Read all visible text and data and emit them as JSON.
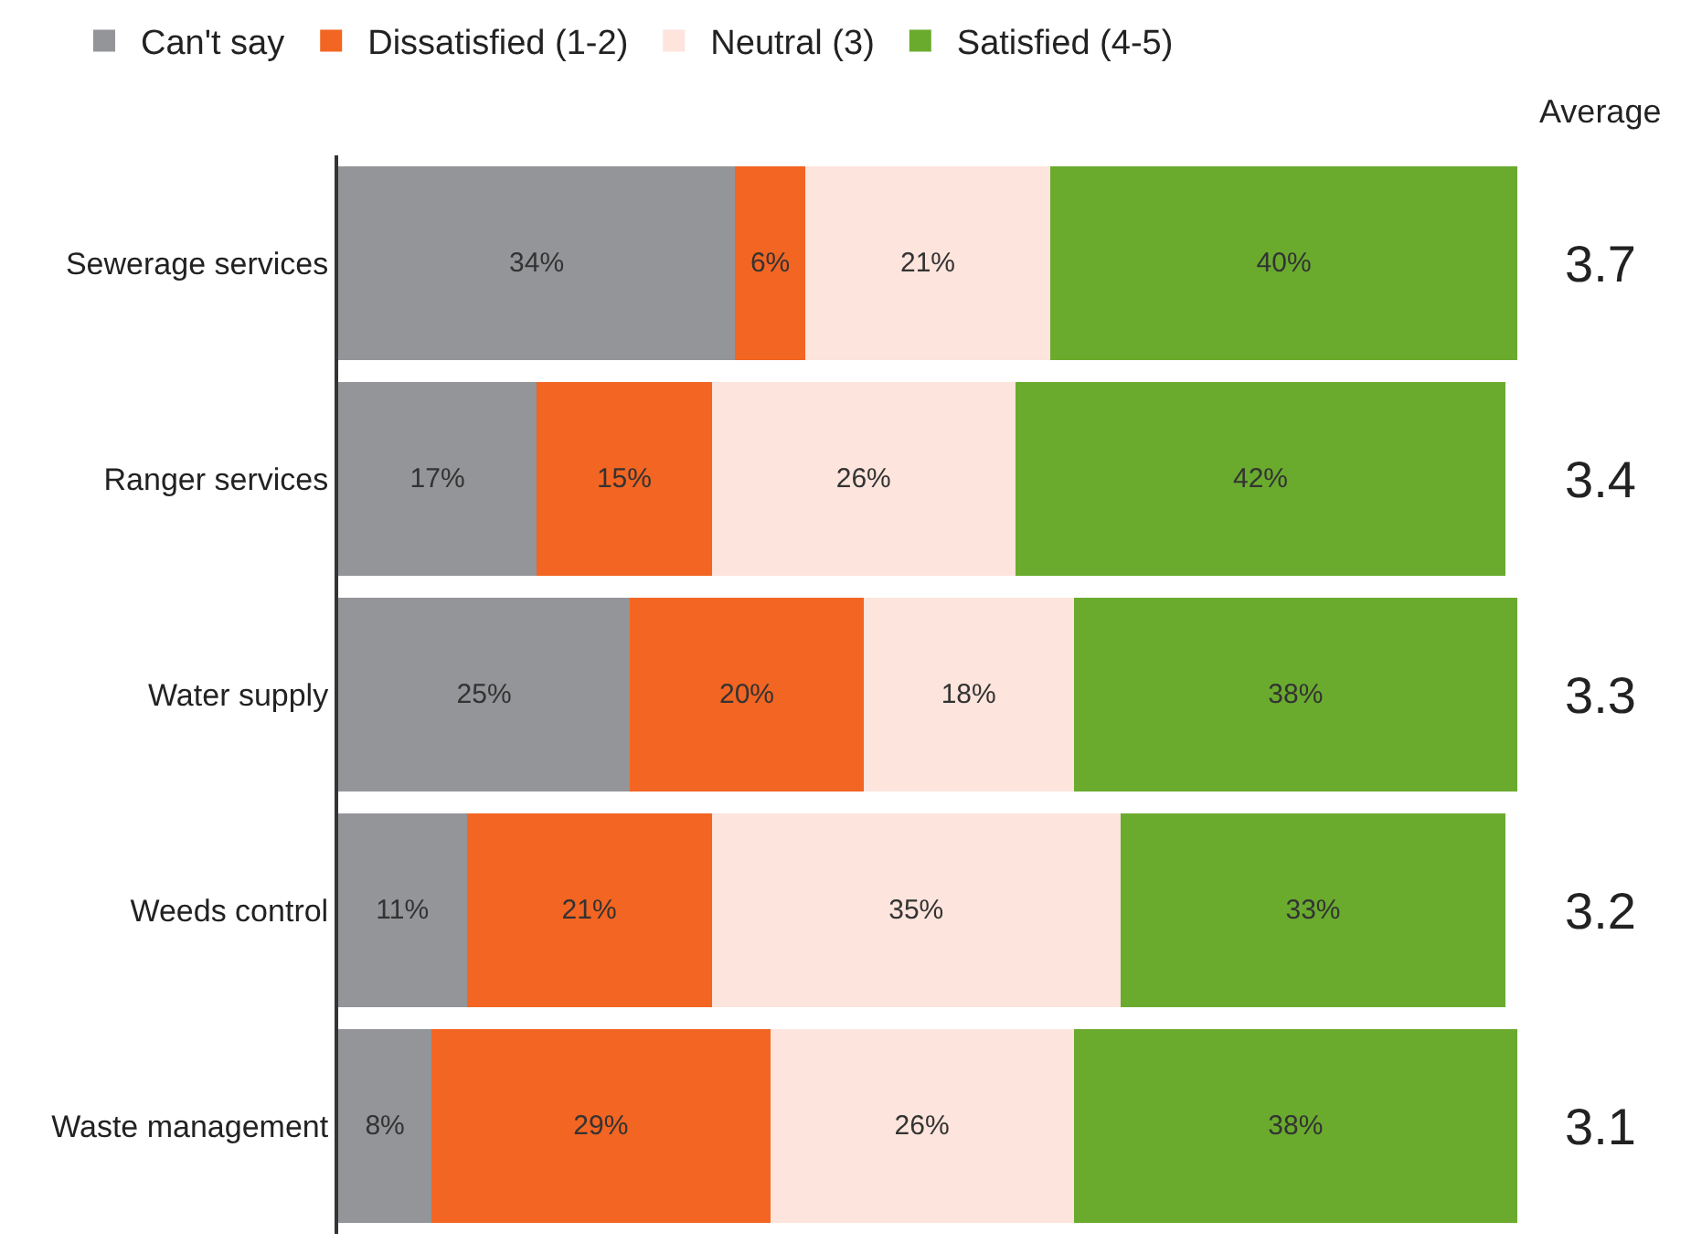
{
  "chart_data": {
    "type": "bar",
    "orientation": "horizontal",
    "stacked": true,
    "categories": [
      "Sewerage services",
      "Ranger services",
      "Water supply",
      "Weeds control",
      "Waste management"
    ],
    "series": [
      {
        "name": "Can't say",
        "color": "#939598",
        "values": [
          34,
          17,
          25,
          11,
          8
        ],
        "value_labels": [
          "34%",
          "17%",
          "25%",
          "11%",
          "8%"
        ]
      },
      {
        "name": "Dissatisfied (1-2)",
        "color": "#f26522",
        "values": [
          6,
          15,
          20,
          21,
          29
        ],
        "value_labels": [
          "6%",
          "15%",
          "20%",
          "21%",
          "29%"
        ]
      },
      {
        "name": "Neutral (3)",
        "color": "#fde4dc",
        "values": [
          21,
          26,
          18,
          35,
          26
        ],
        "value_labels": [
          "21%",
          "26%",
          "18%",
          "35%",
          "26%"
        ]
      },
      {
        "name": "Satisfied (4-5)",
        "color": "#6aab2e",
        "values": [
          40,
          42,
          38,
          33,
          38
        ],
        "value_labels": [
          "40%",
          "42%",
          "38%",
          "33%",
          "38%"
        ]
      }
    ],
    "xlim": [
      0,
      101
    ],
    "tick_labels": "y",
    "legend": "top",
    "annotations": [
      "Average",
      "3.7",
      "3.4",
      "3.3",
      "3.2",
      "3.1"
    ]
  }
}
